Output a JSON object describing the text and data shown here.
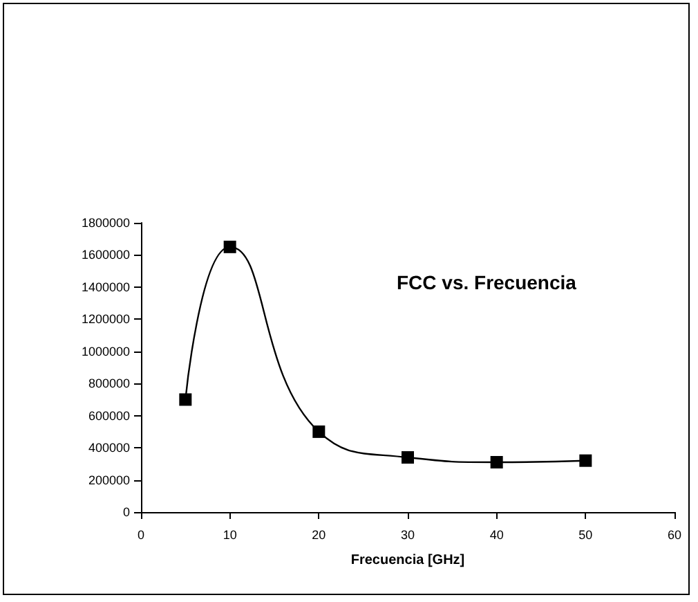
{
  "chart_data": {
    "type": "line",
    "title": "FCC vs. Frecuencia",
    "xlabel": "Frecuencia [GHz]",
    "x": [
      5,
      10,
      20,
      30,
      40,
      50
    ],
    "series": [
      {
        "color": "#000000",
        "values": [
          700000,
          1650000,
          500000,
          340000,
          310000,
          320000
        ]
      }
    ],
    "xlim": [
      0,
      60
    ],
    "xticks": [
      0,
      10,
      20,
      30,
      40,
      50,
      60
    ],
    "ylim": [
      0,
      1800000
    ],
    "yticks": [
      0,
      200000,
      400000,
      600000,
      800000,
      1000000,
      1200000,
      1400000,
      1600000,
      1800000
    ],
    "grid": false,
    "marker": "square",
    "line_style": "solid"
  }
}
